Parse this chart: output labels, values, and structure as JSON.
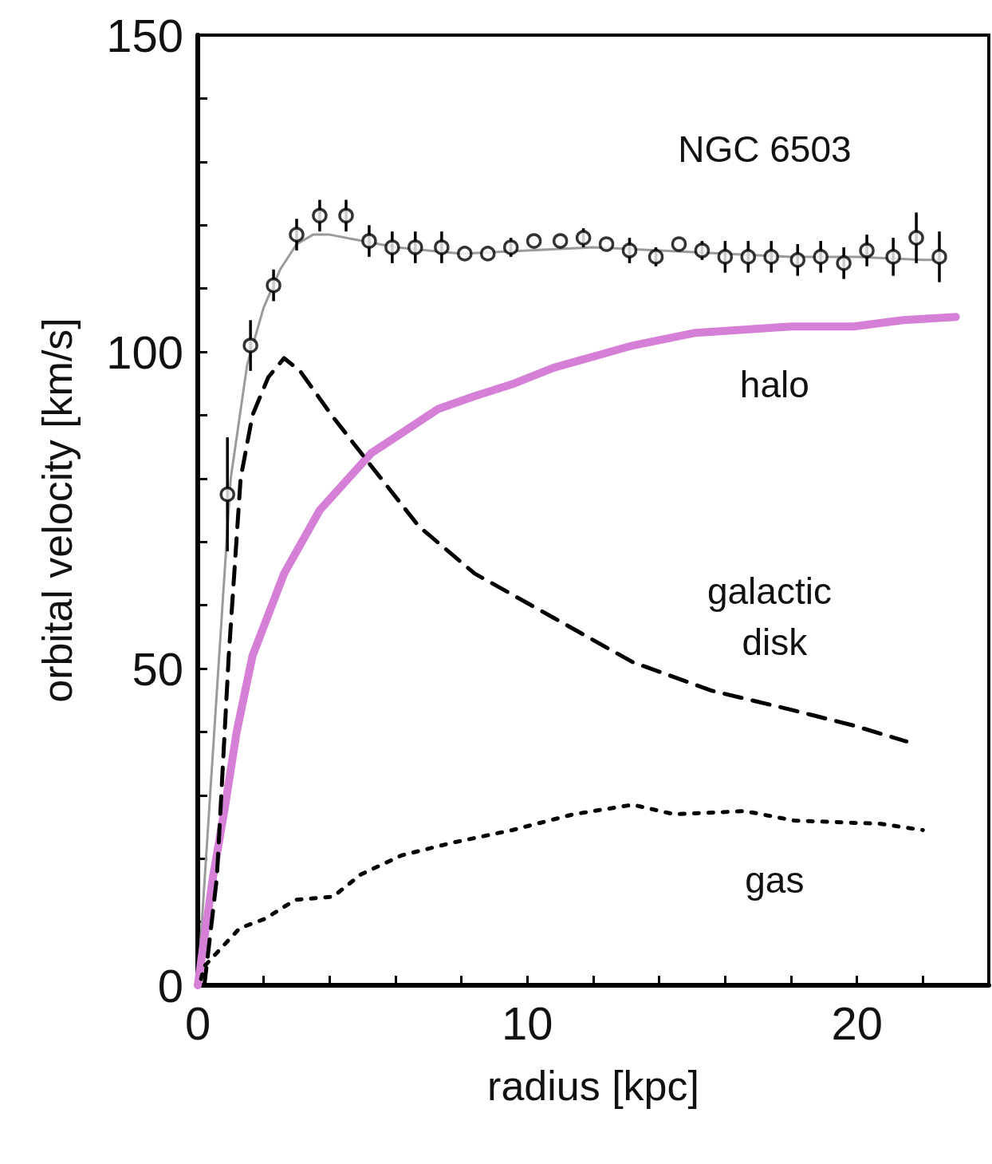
{
  "chart_data": {
    "type": "line",
    "xlabel": "radius [kpc]",
    "ylabel": "orbital velocity [km/s]",
    "xlim": [
      0,
      24
    ],
    "xticks": [
      0,
      {
        "value": 2,
        "label": null
      },
      {
        "value": 4,
        "label": null
      },
      {
        "value": 6,
        "label": null
      },
      {
        "value": 8,
        "label": null
      },
      10,
      {
        "value": 12,
        "label": null
      },
      {
        "value": 14,
        "label": null
      },
      {
        "value": 16,
        "label": null
      },
      {
        "value": 18,
        "label": null
      },
      20,
      {
        "value": 22,
        "label": null
      }
    ],
    "ylim": [
      0,
      150
    ],
    "yticks": [
      0,
      {
        "value": 10,
        "label": null
      },
      {
        "value": 20,
        "label": null
      },
      {
        "value": 30,
        "label": null
      },
      {
        "value": 40,
        "label": null
      },
      50,
      {
        "value": 60,
        "label": null
      },
      {
        "value": 70,
        "label": null
      },
      {
        "value": 80,
        "label": null
      },
      {
        "value": 90,
        "label": null
      },
      100,
      {
        "value": 110,
        "label": null
      },
      {
        "value": 120,
        "label": null
      },
      {
        "value": 130,
        "label": null
      },
      {
        "value": 140,
        "label": null
      },
      150
    ],
    "grid": false,
    "series": [
      {
        "name": "NGC 6503",
        "type": "scatter",
        "marker": "circle",
        "color": "#000000",
        "x": [
          0.9,
          1.6,
          2.3,
          3.0,
          3.7,
          4.5,
          5.2,
          5.9,
          6.6,
          7.4,
          8.1,
          8.8,
          9.5,
          10.2,
          11.0,
          11.7,
          12.4,
          13.1,
          13.9,
          14.6,
          15.3,
          16.0,
          16.7,
          17.4,
          18.2,
          18.9,
          19.6,
          20.3,
          21.1,
          21.8,
          22.5
        ],
        "values": [
          77.5,
          101,
          110.5,
          118.5,
          121.5,
          121.5,
          117.5,
          116.5,
          116.5,
          116.5,
          115.5,
          115.5,
          116.5,
          117.5,
          117.5,
          118,
          117,
          116,
          115,
          117,
          116,
          115,
          115,
          115,
          114.5,
          115,
          114,
          116,
          115,
          118,
          115
        ],
        "errors": [
          9,
          4,
          2.5,
          2.5,
          2.5,
          2.5,
          2.5,
          2.5,
          2.5,
          2.5,
          null,
          null,
          1.5,
          null,
          null,
          1.5,
          null,
          2,
          1.5,
          null,
          1.5,
          2.5,
          2.5,
          2.5,
          2.5,
          2.5,
          2.5,
          2.5,
          3,
          4,
          4
        ]
      },
      {
        "type": "line",
        "color": "#9a9a9a",
        "line_style": "solid",
        "x": [
          0,
          0.5,
          1,
          1.5,
          2,
          2.5,
          3,
          3.5,
          4,
          5,
          6,
          8,
          10,
          12,
          14,
          16,
          18,
          20,
          22,
          22.5
        ],
        "values": [
          0,
          40,
          80,
          98,
          107,
          113,
          117,
          118.5,
          118.5,
          117.5,
          116.5,
          115.5,
          116,
          116.5,
          116,
          115.5,
          115,
          115,
          114.5,
          114.5
        ]
      },
      {
        "name": "halo",
        "type": "line",
        "color": "#d67fd6",
        "line_style": "solid",
        "x": [
          0,
          0.46,
          0.82,
          1.18,
          1.66,
          2.62,
          3.7,
          5.26,
          7.3,
          8.4,
          9.6,
          10.8,
          13.2,
          15.1,
          18,
          19.9,
          21.4,
          23
        ],
        "values": [
          0,
          17,
          28,
          40,
          52,
          65,
          75,
          84,
          91,
          93,
          95,
          97.5,
          101,
          103,
          104,
          104,
          105,
          105.5
        ]
      },
      {
        "name": "galactic disk",
        "type": "line",
        "color": "#000000",
        "line_style": "dashed",
        "x": [
          0.2,
          0.58,
          0.94,
          1.3,
          1.66,
          2.14,
          2.62,
          3.1,
          4.06,
          5.26,
          6.7,
          8.4,
          10.8,
          13.2,
          15.6,
          18,
          19.9,
          21.5
        ],
        "values": [
          0,
          17,
          52,
          80,
          90,
          96,
          99,
          97,
          90,
          82,
          72.5,
          65,
          58,
          51,
          46.5,
          43.5,
          41,
          38.5
        ]
      },
      {
        "name": "gas",
        "type": "line",
        "color": "#000000",
        "line_style": "dotted",
        "x": [
          0.1,
          0.2,
          1.27,
          2.04,
          2.96,
          4.11,
          4.95,
          6.18,
          7.72,
          9.54,
          11.4,
          13.2,
          14.45,
          16.6,
          18.1,
          20.7,
          22
        ],
        "values": [
          1,
          3,
          9,
          10.5,
          13.5,
          14,
          17.5,
          20.5,
          22.5,
          24.5,
          27,
          28.5,
          27,
          27.5,
          26,
          25.5,
          24.5
        ]
      }
    ]
  }
}
